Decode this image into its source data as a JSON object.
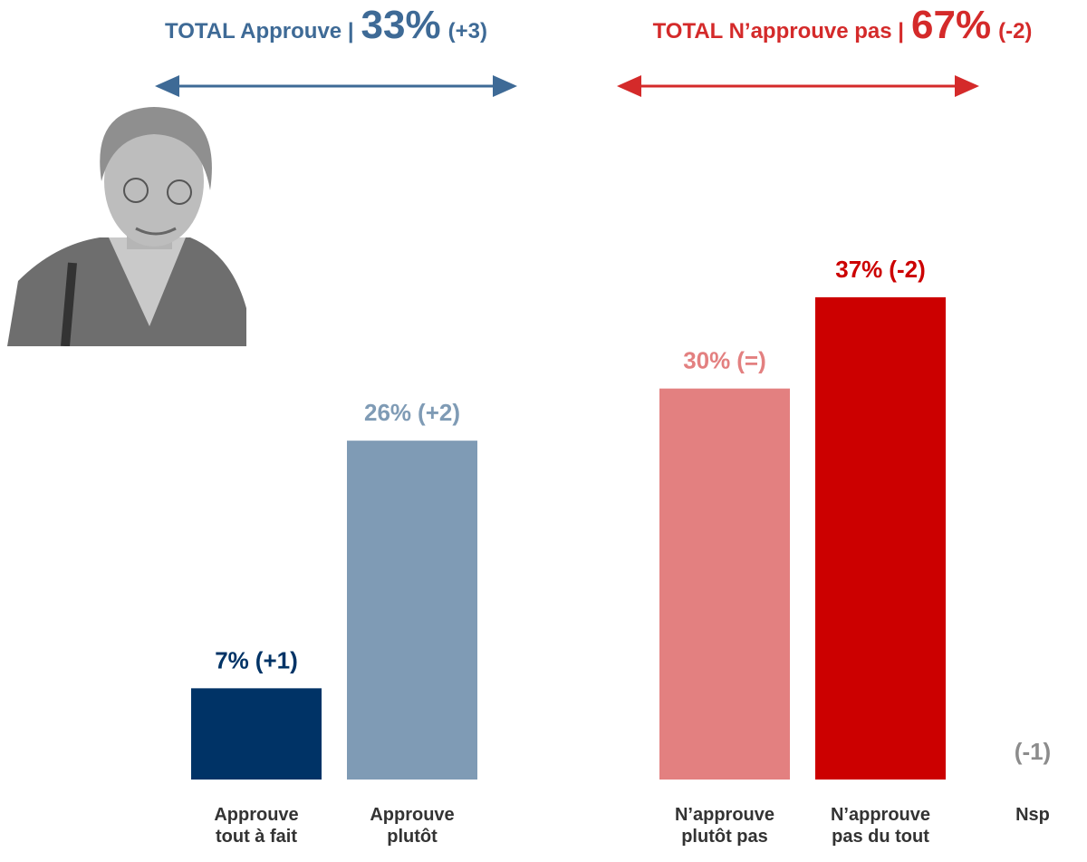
{
  "chart_data": {
    "type": "bar",
    "headers": [
      {
        "text": "TOTAL Approuve |",
        "value_label": "33%",
        "change": "(+3)",
        "color": "#3e6a96"
      },
      {
        "text": "TOTAL N’approuve pas |",
        "value_label": "67%",
        "change": "(-2)",
        "color": "#d42a2a"
      }
    ],
    "categories": [
      "Approuve\ntout à fait",
      "Approuve\nplutôt",
      "N’approuve\nplutôt pas",
      "N’approuve\npas du tout",
      "Nsp"
    ],
    "values": [
      7,
      26,
      30,
      37,
      null
    ],
    "value_labels": [
      "7%",
      "26%",
      "30%",
      "37%",
      null
    ],
    "changes": [
      "(+1)",
      "(+2)",
      "(=)",
      "(-2)",
      "(-1)"
    ],
    "colors": [
      "#003366",
      "#7f9bb5",
      "#e38080",
      "#cc0000",
      "#8c8c8c"
    ]
  }
}
